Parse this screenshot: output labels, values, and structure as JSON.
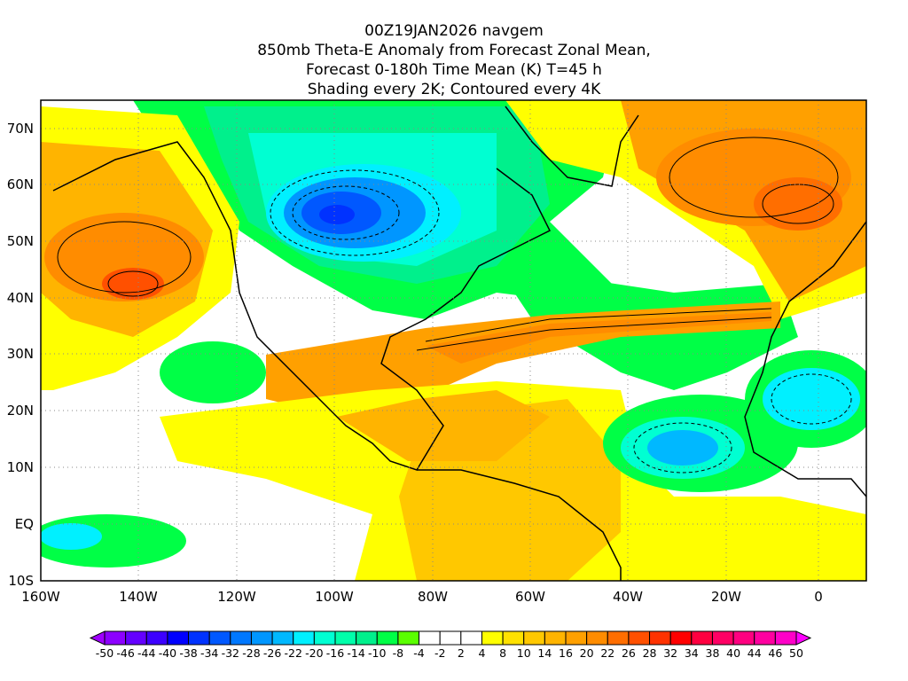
{
  "title": {
    "line1": "00Z19JAN2026 navgem",
    "line2": "850mb Theta-E Anomaly from Forecast Zonal Mean,",
    "line3": "Forecast 0-180h Time Mean (K) T=45 h",
    "line4": "Shading every 2K; Contoured every 4K"
  },
  "axes": {
    "lat_labels": [
      "70N",
      "60N",
      "50N",
      "40N",
      "30N",
      "20N",
      "10N",
      "EQ",
      "10S"
    ],
    "lon_labels": [
      "160W",
      "140W",
      "120W",
      "100W",
      "80W",
      "60W",
      "40W",
      "20W",
      "0"
    ]
  },
  "colorbar": {
    "labels": [
      "-50",
      "-46",
      "-44",
      "-40",
      "-38",
      "-34",
      "-32",
      "-28",
      "-26",
      "-22",
      "-20",
      "-16",
      "-14",
      "-10",
      "-8",
      "-4",
      "-2",
      "2",
      "4",
      "8",
      "10",
      "14",
      "16",
      "20",
      "22",
      "26",
      "28",
      "32",
      "34",
      "38",
      "40",
      "44",
      "46",
      "50"
    ],
    "colors": [
      "#8c00ff",
      "#6400ff",
      "#3c00ff",
      "#0000ff",
      "#0032ff",
      "#0058ff",
      "#0078ff",
      "#0096ff",
      "#00b8ff",
      "#00f0ff",
      "#00ffd2",
      "#00ffaa",
      "#00f08c",
      "#00ff46",
      "#5aff00",
      "#ffffff",
      "#ffffff",
      "#ffffff",
      "#ffff00",
      "#ffe100",
      "#ffc800",
      "#ffb400",
      "#ffa000",
      "#ff8c00",
      "#ff6e00",
      "#ff5000",
      "#ff3200",
      "#ff0000",
      "#ff0040",
      "#ff0064",
      "#ff0080",
      "#ff00a0",
      "#ff00c8"
    ],
    "low_extend_color": "#a000ff",
    "high_extend_color": "#ff00ff"
  }
}
